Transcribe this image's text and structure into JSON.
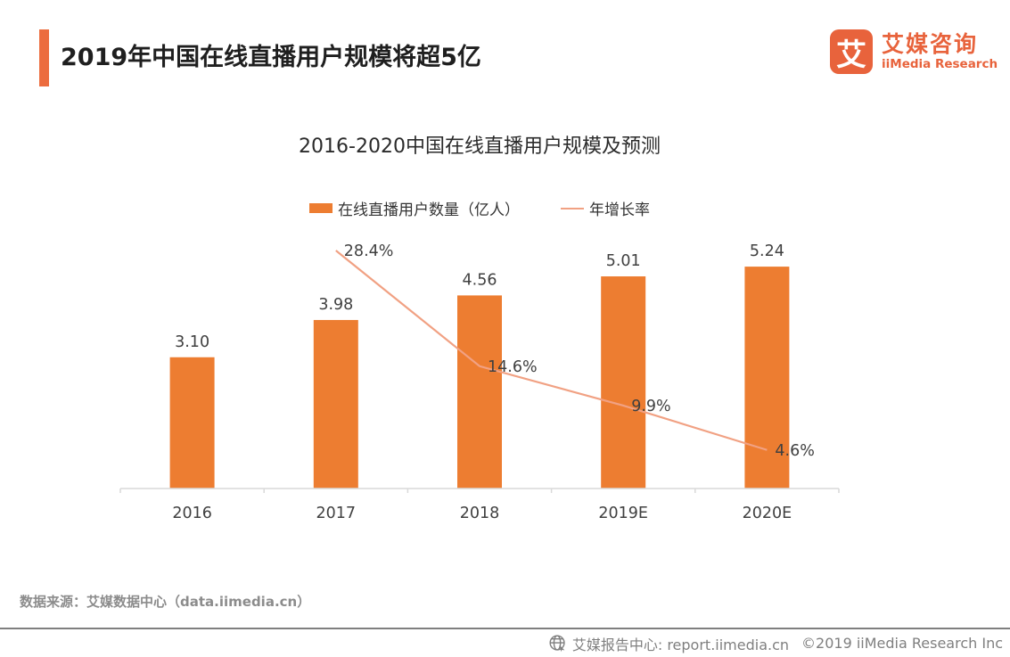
{
  "header": {
    "title": "2019年中国在线直播用户规模将超5亿",
    "logo": {
      "glyph": "艾",
      "brand_cn": "艾媒咨询",
      "brand_en": "iiMedia Research"
    }
  },
  "chart_data": {
    "type": "bar",
    "title": "2016-2020中国在线直播用户规模及预测",
    "categories": [
      "2016",
      "2017",
      "2018",
      "2019E",
      "2020E"
    ],
    "series": [
      {
        "name": "在线直播用户数量（亿人）",
        "type": "bar",
        "color": "#ed7d31",
        "values": [
          3.1,
          3.98,
          4.56,
          5.01,
          5.24
        ],
        "value_labels": [
          "3.10",
          "3.98",
          "4.56",
          "5.01",
          "5.24"
        ]
      },
      {
        "name": "年增长率",
        "type": "line",
        "color": "#f1a183",
        "values": [
          null,
          28.4,
          14.6,
          9.9,
          4.6
        ],
        "value_labels": [
          null,
          "28.4%",
          "14.6%",
          "9.9%",
          "4.6%"
        ]
      }
    ],
    "ylabel": "",
    "xlabel": "",
    "ylim_bar": [
      0,
      6.3
    ],
    "ylim_line_pct": [
      0,
      32
    ],
    "grid": false,
    "legend_position": "top",
    "axis_color": "#d9d9d9",
    "label_color": "#404040"
  },
  "source_note": "数据来源：艾媒数据中心（data.iimedia.cn）",
  "footer": {
    "report_center": "艾媒报告中心: report.iimedia.cn",
    "copyright": "©2019  iiMedia Research Inc",
    "globe_icon": "globe-icon"
  },
  "colors": {
    "accent": "#ec6c3e",
    "logo_orange": "#e8633c",
    "bar_orange": "#ed7d31",
    "line_salmon": "#f1a183",
    "gray_text": "#8c8c8c",
    "footer_gray": "#7f7f7f"
  }
}
